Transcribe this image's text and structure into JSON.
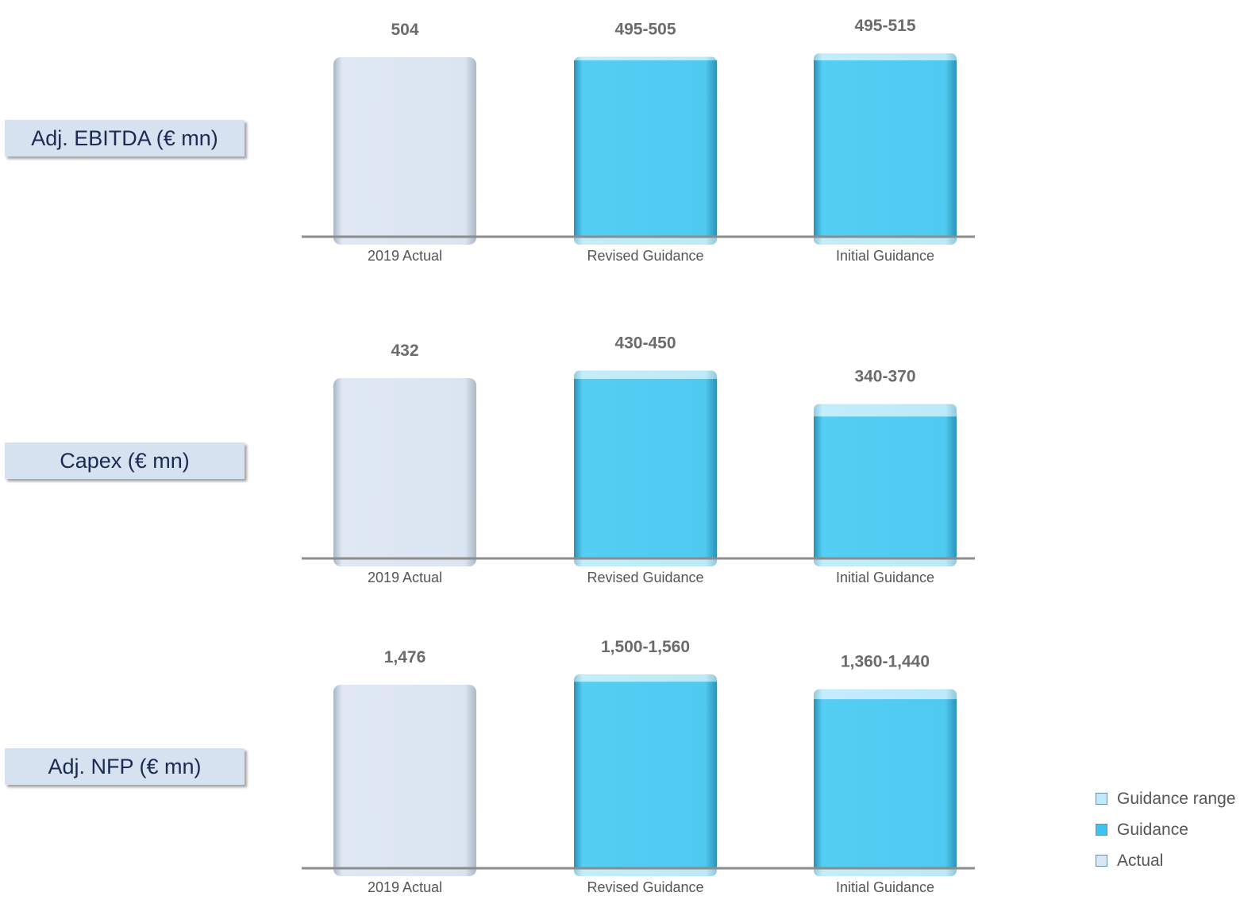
{
  "chart_data": [
    {
      "type": "bar",
      "title": "Adj. EBITDA (€ mn)",
      "categories": [
        "2019 Actual",
        "Revised Guidance",
        "Initial Guidance"
      ],
      "series": [
        {
          "kind": "actual",
          "values": [
            504,
            null,
            null
          ]
        },
        {
          "kind": "guidance",
          "values": [
            null,
            495,
            495
          ]
        },
        {
          "kind": "guidance-range",
          "values": [
            null,
            505,
            515
          ]
        }
      ],
      "data_labels": [
        "504",
        "495-505",
        "495-515"
      ],
      "ylim": [
        0,
        520
      ]
    },
    {
      "type": "bar",
      "title": "Capex (€ mn)",
      "categories": [
        "2019 Actual",
        "Revised Guidance",
        "Initial Guidance"
      ],
      "series": [
        {
          "kind": "actual",
          "values": [
            432,
            null,
            null
          ]
        },
        {
          "kind": "guidance",
          "values": [
            null,
            430,
            340
          ]
        },
        {
          "kind": "guidance-range",
          "values": [
            null,
            450,
            370
          ]
        }
      ],
      "data_labels": [
        "432",
        "430-450",
        "340-370"
      ],
      "ylim": [
        0,
        460
      ]
    },
    {
      "type": "bar",
      "title": "Adj. NFP (€ mn)",
      "categories": [
        "2019 Actual",
        "Revised Guidance",
        "Initial Guidance"
      ],
      "series": [
        {
          "kind": "actual",
          "values": [
            1476,
            null,
            null
          ]
        },
        {
          "kind": "guidance",
          "values": [
            null,
            1500,
            1360
          ]
        },
        {
          "kind": "guidance-range",
          "values": [
            null,
            1560,
            1440
          ]
        }
      ],
      "data_labels": [
        "1,476",
        "1,500-1,560",
        "1,360-1,440"
      ],
      "ylim": [
        0,
        1620
      ]
    }
  ],
  "legend": {
    "items": [
      {
        "label": "Guidance range",
        "color": "#bfeaf8"
      },
      {
        "label": "Guidance",
        "color": "#3fc3ee"
      },
      {
        "label": "Actual",
        "color": "#dce6f2"
      }
    ]
  },
  "colors": {
    "actual": "#dce6f2",
    "guidance": "#4fccf2",
    "guidance_range": "#bdeaf8",
    "baseline": "#8c8c8c",
    "value_text": "#6b6b6b",
    "label_text": "#1b2a52"
  }
}
